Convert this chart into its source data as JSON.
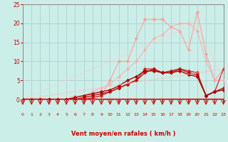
{
  "bg_color": "#cceee8",
  "grid_color": "#aacccc",
  "xlabel": "Vent moyen/en rafales ( km/h )",
  "xlabel_color": "#cc0000",
  "tick_color": "#cc0000",
  "xmin": 0,
  "xmax": 23,
  "ymin": 0,
  "ymax": 25,
  "yticks": [
    0,
    5,
    10,
    15,
    20,
    25
  ],
  "xticks": [
    0,
    1,
    2,
    3,
    4,
    5,
    6,
    7,
    8,
    9,
    10,
    11,
    12,
    13,
    14,
    15,
    16,
    17,
    18,
    19,
    20,
    21,
    22,
    23
  ],
  "lines": [
    {
      "x": [
        0,
        1,
        2,
        3,
        4,
        5,
        6,
        7,
        8,
        9,
        10,
        11,
        12,
        13,
        14,
        15,
        16,
        17,
        18,
        19,
        20,
        21,
        22,
        23
      ],
      "y": [
        0,
        0,
        0,
        0,
        0,
        0,
        0,
        0,
        0,
        0,
        0,
        0,
        0,
        0,
        0,
        0,
        0,
        0,
        0,
        0,
        0,
        0,
        0,
        0
      ],
      "color": "#dd2222",
      "lw": 1.5,
      "marker": null,
      "alpha": 1.0
    },
    {
      "note": "lightest pink - big peak at x=20 ~23, goes 0->16->21->21->21->19->18->13->23->12->5->8",
      "x": [
        0,
        1,
        2,
        3,
        4,
        5,
        6,
        7,
        8,
        9,
        10,
        11,
        12,
        13,
        14,
        15,
        16,
        17,
        18,
        19,
        20,
        21,
        22,
        23
      ],
      "y": [
        0,
        0,
        0,
        0,
        0,
        0,
        0,
        0,
        0,
        1,
        5,
        10,
        10,
        16,
        21,
        21,
        21,
        19,
        18,
        13,
        23,
        12,
        5,
        8
      ],
      "color": "#ff9999",
      "lw": 1.0,
      "marker": "D",
      "markersize": 2.5,
      "alpha": 0.75
    },
    {
      "x": [
        0,
        1,
        2,
        3,
        4,
        5,
        6,
        7,
        8,
        9,
        10,
        11,
        12,
        13,
        14,
        15,
        16,
        17,
        18,
        19,
        20,
        21,
        22,
        23
      ],
      "y": [
        0,
        0,
        0,
        0,
        0,
        0,
        1,
        1,
        2,
        3,
        4,
        6,
        8,
        10,
        13,
        16,
        17,
        19,
        20,
        20,
        18,
        10,
        5,
        5
      ],
      "color": "#ffaaaa",
      "lw": 1.0,
      "marker": "D",
      "markersize": 2.5,
      "alpha": 0.7
    },
    {
      "x": [
        0,
        1,
        2,
        3,
        4,
        5,
        6,
        7,
        8,
        9,
        10,
        11,
        12,
        13,
        14,
        15,
        16,
        17,
        18,
        19,
        20,
        21,
        22,
        23
      ],
      "y": [
        0,
        0,
        0,
        0,
        0,
        0,
        0,
        0,
        0.5,
        1,
        2,
        3,
        4,
        5,
        8,
        8,
        7,
        7,
        8,
        7.5,
        7,
        1,
        2,
        8
      ],
      "color": "#cc2222",
      "lw": 1.0,
      "marker": "D",
      "markersize": 2.5,
      "alpha": 0.9
    },
    {
      "x": [
        0,
        1,
        2,
        3,
        4,
        5,
        6,
        7,
        8,
        9,
        10,
        11,
        12,
        13,
        14,
        15,
        16,
        17,
        18,
        19,
        20,
        21,
        22,
        23
      ],
      "y": [
        0,
        0,
        0,
        0,
        0,
        0,
        0,
        0.5,
        1,
        1.5,
        2,
        3,
        4,
        5,
        7,
        8,
        7,
        7.5,
        8,
        7,
        6.5,
        1,
        2,
        3
      ],
      "color": "#bb1111",
      "lw": 1.0,
      "marker": "D",
      "markersize": 2.5,
      "alpha": 1.0
    },
    {
      "x": [
        0,
        1,
        2,
        3,
        4,
        5,
        6,
        7,
        8,
        9,
        10,
        11,
        12,
        13,
        14,
        15,
        16,
        17,
        18,
        19,
        20,
        21,
        22,
        23
      ],
      "y": [
        0,
        0,
        0,
        0,
        0,
        0,
        0.5,
        1,
        1.5,
        2,
        2.5,
        3.5,
        5,
        6,
        7.5,
        7.5,
        7,
        7,
        7.5,
        6.5,
        6,
        1,
        2,
        2.5
      ],
      "color": "#aa0000",
      "lw": 1.0,
      "marker": "D",
      "markersize": 2.5,
      "alpha": 1.0
    },
    {
      "x": [
        0,
        23
      ],
      "y": [
        0,
        8
      ],
      "color": "#ffbbbb",
      "lw": 0.8,
      "marker": null,
      "alpha": 0.6
    },
    {
      "x": [
        0,
        20,
        23
      ],
      "y": [
        0,
        20,
        5
      ],
      "color": "#ffcccc",
      "lw": 0.8,
      "marker": null,
      "alpha": 0.5
    }
  ],
  "hline_color": "#cc0000",
  "hline_lw": 1.5,
  "arrow_color": "#cc0000"
}
